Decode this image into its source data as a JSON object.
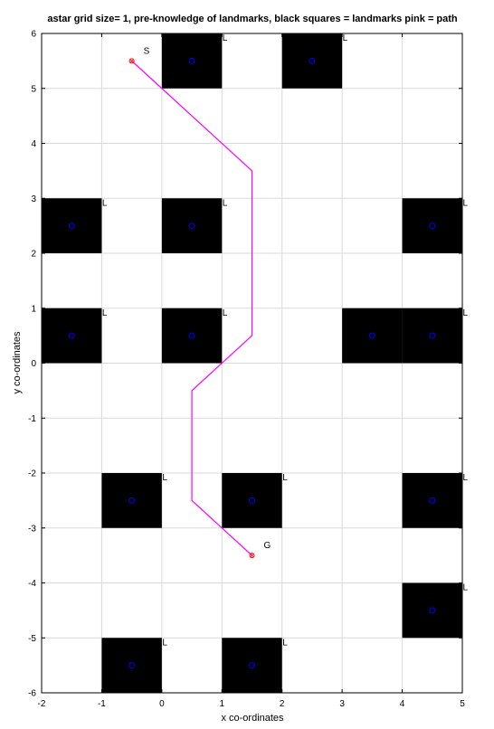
{
  "chart_data": {
    "type": "scatter",
    "title": "astar grid size= 1, pre-knowledge of landmarks, black squares = landmarks pink = path",
    "xlabel": "x co-ordinates",
    "ylabel": "y co-ordinates",
    "xlim": [
      -2,
      5
    ],
    "ylim": [
      -6,
      6
    ],
    "xticks": [
      -2,
      -1,
      0,
      1,
      2,
      3,
      4,
      5
    ],
    "yticks": [
      -6,
      -5,
      -4,
      -3,
      -2,
      -1,
      0,
      1,
      2,
      3,
      4,
      5,
      6
    ],
    "grid": true,
    "landmark_label": "L",
    "landmarks": [
      {
        "x": 0.5,
        "y": 5.5
      },
      {
        "x": 2.5,
        "y": 5.5
      },
      {
        "x": -1.5,
        "y": 2.5
      },
      {
        "x": 0.5,
        "y": 2.5
      },
      {
        "x": 4.5,
        "y": 2.5
      },
      {
        "x": -1.5,
        "y": 0.5
      },
      {
        "x": 0.5,
        "y": 0.5
      },
      {
        "x": 3.5,
        "y": 0.5
      },
      {
        "x": 4.5,
        "y": 0.5
      },
      {
        "x": -0.5,
        "y": -2.5
      },
      {
        "x": 1.5,
        "y": -2.5
      },
      {
        "x": 4.5,
        "y": -2.5
      },
      {
        "x": 4.5,
        "y": -4.5
      },
      {
        "x": -0.5,
        "y": -5.5
      },
      {
        "x": 1.5,
        "y": -5.5
      }
    ],
    "path": {
      "name": "path",
      "color": "#ff00ff",
      "x": [
        -0.5,
        0,
        1.5,
        1.5,
        0.5,
        0.5,
        1.5
      ],
      "y": [
        5.5,
        5,
        3.5,
        0.5,
        -0.5,
        -2.5,
        -3.5
      ]
    },
    "start": {
      "label": "S",
      "x": -0.5,
      "y": 5.5
    },
    "goal": {
      "label": "G",
      "x": 1.5,
      "y": -3.5
    },
    "colors": {
      "landmark": "#000000",
      "marker": "#0000ff",
      "path": "#ff00ff",
      "grid": "#d9d9d9"
    }
  }
}
